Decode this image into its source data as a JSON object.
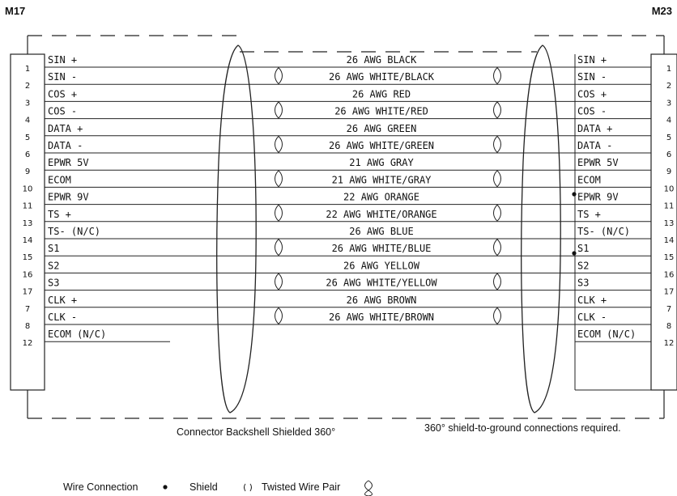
{
  "connectors": {
    "left": {
      "label": "M17",
      "pins": [
        "1",
        "2",
        "3",
        "4",
        "5",
        "6",
        "9",
        "10",
        "11",
        "13",
        "14",
        "15",
        "16",
        "17",
        "7",
        "8",
        "12"
      ],
      "signals": [
        "SIN +",
        "SIN -",
        "COS +",
        "COS -",
        "DATA +",
        "DATA -",
        "EPWR 5V",
        "ECOM",
        "EPWR 9V",
        "TS +",
        "TS- (N/C)",
        "S1",
        "S2",
        "S3",
        "CLK +",
        "CLK -",
        "ECOM (N/C)"
      ]
    },
    "right": {
      "label": "M23",
      "pins": [
        "1",
        "2",
        "3",
        "4",
        "5",
        "6",
        "9",
        "10",
        "11",
        "13",
        "14",
        "15",
        "16",
        "17",
        "7",
        "8",
        "12"
      ],
      "signals": [
        "SIN +",
        "SIN -",
        "COS +",
        "COS -",
        "DATA +",
        "DATA -",
        "EPWR 5V",
        "ECOM",
        "EPWR 9V",
        "TS +",
        "TS- (N/C)",
        "S1",
        "S2",
        "S3",
        "CLK +",
        "CLK -",
        "ECOM (N/C)"
      ]
    }
  },
  "wires": [
    "26 AWG BLACK",
    "26 AWG WHITE/BLACK",
    "26 AWG RED",
    "26 AWG WHITE/RED",
    "26 AWG GREEN",
    "26 AWG WHITE/GREEN",
    "21 AWG GRAY",
    "21 AWG WHITE/GRAY",
    "22 AWG ORANGE",
    "22 AWG WHITE/ORANGE",
    "26 AWG BLUE",
    "26 AWG WHITE/BLUE",
    "26 AWG YELLOW",
    "26 AWG WHITE/YELLOW",
    "26 AWG BROWN",
    "26 AWG WHITE/BROWN"
  ],
  "notes": {
    "backshell": "Connector Backshell Shielded 360°",
    "shield_ground": "360° shield-to-ground connections required."
  },
  "legend": {
    "wire_connection": "Wire Connection",
    "shield": "Shield",
    "twisted_pair": "Twisted Wire Pair"
  }
}
